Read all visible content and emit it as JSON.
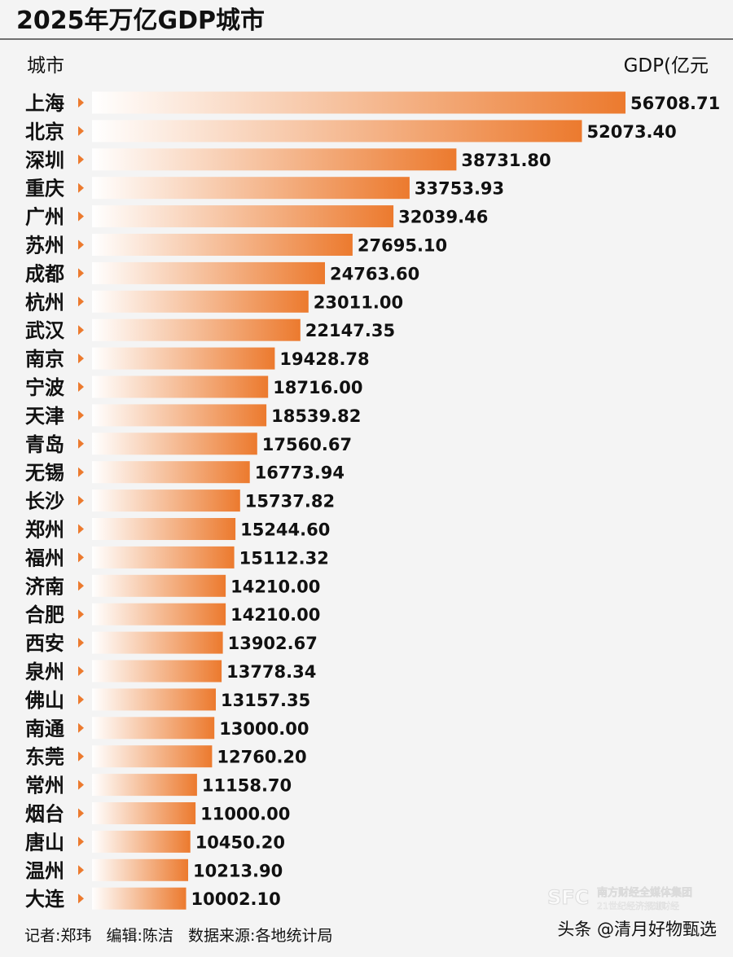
{
  "chart_data": {
    "type": "bar",
    "orientation": "horizontal",
    "title": "2025年万亿GDP城市",
    "category_header": "城市",
    "value_header": "GDP(亿元",
    "categories": [
      "上海",
      "北京",
      "深圳",
      "重庆",
      "广州",
      "苏州",
      "成都",
      "杭州",
      "武汉",
      "南京",
      "宁波",
      "天津",
      "青岛",
      "无锡",
      "长沙",
      "郑州",
      "福州",
      "济南",
      "合肥",
      "西安",
      "泉州",
      "佛山",
      "南通",
      "东莞",
      "常州",
      "烟台",
      "唐山",
      "温州",
      "大连"
    ],
    "values": [
      56708.71,
      52073.4,
      38731.8,
      33753.93,
      32039.46,
      27695.1,
      24763.6,
      23011.0,
      22147.35,
      19428.78,
      18716.0,
      18539.82,
      17560.67,
      16773.94,
      15737.82,
      15244.6,
      15112.32,
      14210.0,
      14210.0,
      13902.67,
      13778.34,
      13157.35,
      13000.0,
      12760.2,
      11158.7,
      11000.0,
      10450.2,
      10213.9,
      10002.1
    ],
    "value_labels": [
      "56708.71",
      "52073.40",
      "38731.80",
      "33753.93",
      "32039.46",
      "27695.10",
      "24763.60",
      "23011.00",
      "22147.35",
      "19428.78",
      "18716.00",
      "18539.82",
      "17560.67",
      "16773.94",
      "15737.82",
      "15244.60",
      "15112.32",
      "14210.00",
      "14210.00",
      "13902.67",
      "13778.34",
      "13157.35",
      "13000.00",
      "12760.20",
      "11158.70",
      "11000.00",
      "10450.20",
      "10213.90",
      "10002.10"
    ],
    "xlim": [
      0,
      57500
    ],
    "grid": false,
    "legend": "none",
    "colors": {
      "bar_end": "#ec7a2e",
      "bar_start": "#ffffff",
      "marker": "#ec7a2e",
      "text": "#111111",
      "rule": "#444444"
    }
  },
  "footer": {
    "credits": "记者:郑玮   编辑:陈洁   数据来源:各地统计局",
    "source_tag": "头条 @清月好物甄选"
  },
  "watermark": {
    "logo": "SFC",
    "line1": "南方财经全媒体集团",
    "line2": "21世纪经济报道",
    "line3": "21财经"
  }
}
